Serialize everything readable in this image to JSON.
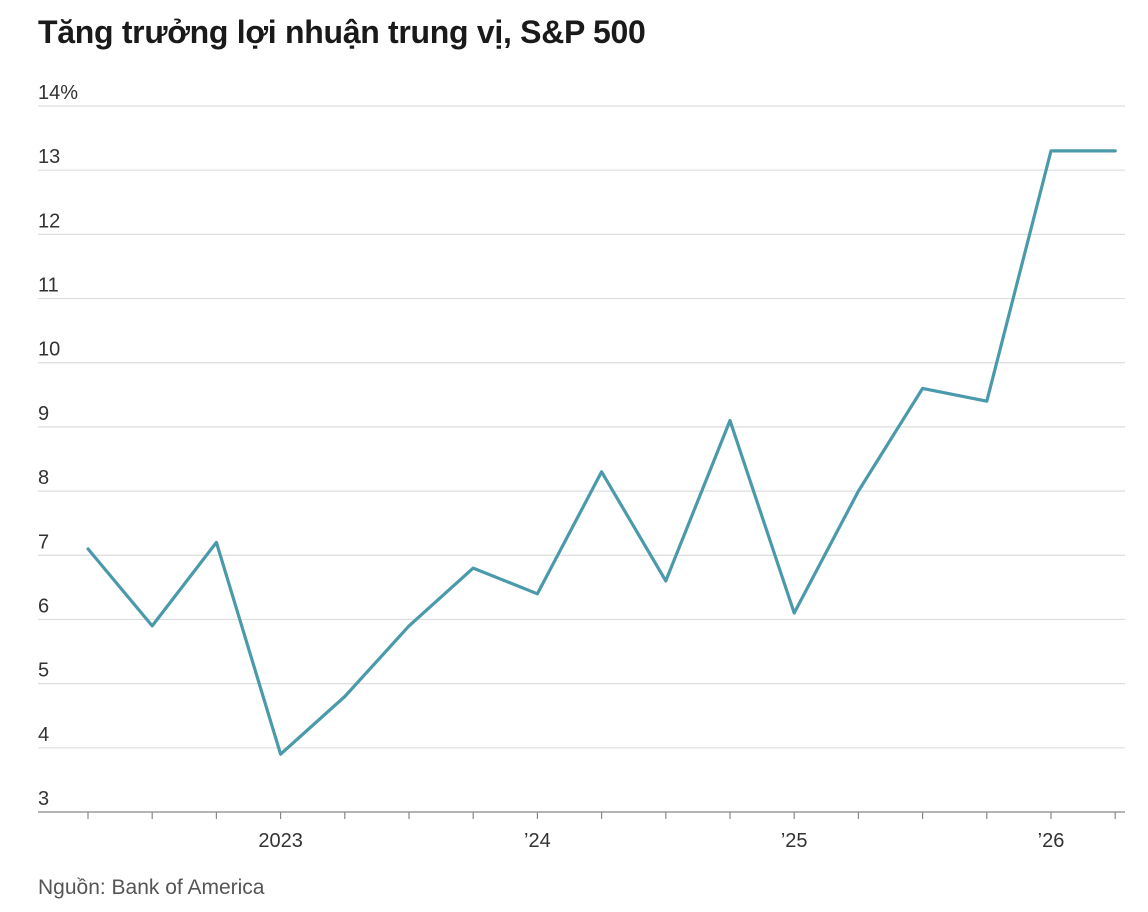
{
  "header": {
    "title": "Tăng trưởng lợi nhuận trung vị, S&P 500"
  },
  "footer": {
    "source": "Nguồn: Bank of America"
  },
  "colors": {
    "line": "#4a9aab",
    "grid": "#dddddd",
    "axis": "#888888"
  },
  "chart_data": {
    "type": "line",
    "title": "Tăng trưởng lợi nhuận trung vị, S&P 500",
    "xlabel": "",
    "ylabel": "",
    "ylim": [
      3,
      14
    ],
    "yunit": "%",
    "yticks": [
      3,
      4,
      5,
      6,
      7,
      8,
      9,
      10,
      11,
      12,
      13,
      14
    ],
    "ytick_labels": [
      "3",
      "4",
      "5",
      "6",
      "7",
      "8",
      "9",
      "10",
      "11",
      "12",
      "13",
      "14%"
    ],
    "x": [
      "2022 Q2",
      "2022 Q3",
      "2022 Q4",
      "2023 Q1",
      "2023 Q2",
      "2023 Q3",
      "2023 Q4",
      "2024 Q1",
      "2024 Q2",
      "2024 Q3",
      "2024 Q4",
      "2025 Q1",
      "2025 Q2",
      "2025 Q3",
      "2025 Q4",
      "2026 Q1",
      "2026 Q2"
    ],
    "xtick_labels": [
      {
        "x": "2023 Q1",
        "label": "2023"
      },
      {
        "x": "2024 Q1",
        "label": "’24"
      },
      {
        "x": "2025 Q1",
        "label": "’25"
      },
      {
        "x": "2026 Q1",
        "label": "’26"
      }
    ],
    "grid": true,
    "legend": "none",
    "series": [
      {
        "values": [
          7.1,
          5.9,
          7.2,
          3.9,
          4.8,
          5.9,
          6.8,
          6.4,
          8.3,
          6.6,
          9.1,
          6.1,
          8.0,
          9.6,
          9.4,
          13.3,
          13.3
        ]
      }
    ]
  }
}
